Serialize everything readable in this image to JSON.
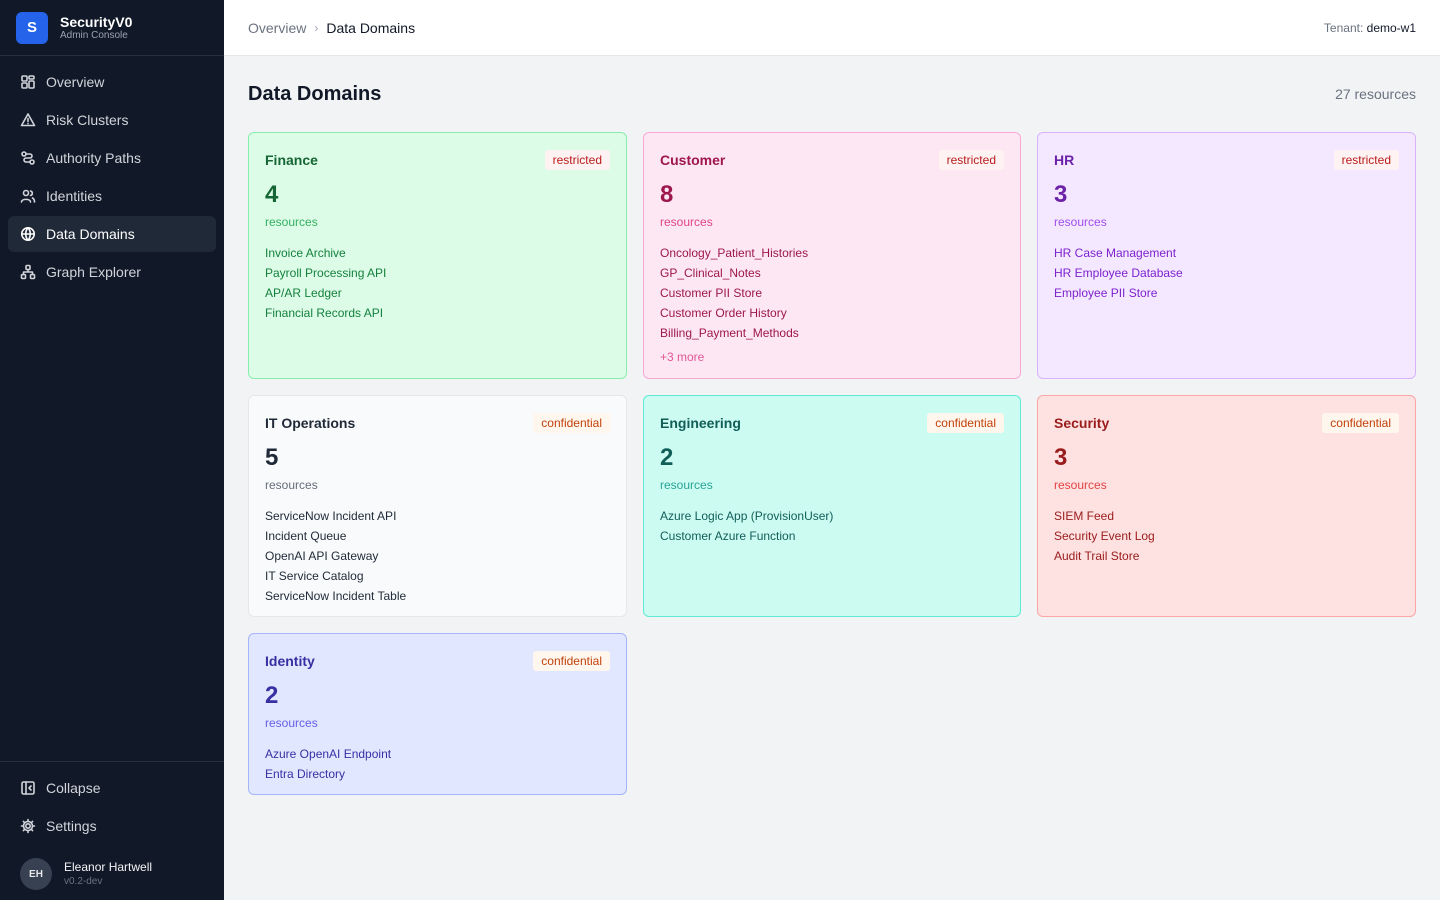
{
  "app": {
    "logo_letter": "S",
    "name": "SecurityV0",
    "subtitle": "Admin Console"
  },
  "nav": [
    {
      "label": "Overview",
      "icon": "grid-icon",
      "active": false
    },
    {
      "label": "Risk Clusters",
      "icon": "warning-triangle-icon",
      "active": false
    },
    {
      "label": "Authority Paths",
      "icon": "route-icon",
      "active": false
    },
    {
      "label": "Identities",
      "icon": "users-icon",
      "active": false
    },
    {
      "label": "Data Domains",
      "icon": "globe-icon",
      "active": true
    },
    {
      "label": "Graph Explorer",
      "icon": "graph-icon",
      "active": false
    }
  ],
  "sidebar_bottom": {
    "collapse_label": "Collapse",
    "settings_label": "Settings"
  },
  "user": {
    "initials": "EH",
    "name": "Eleanor Hartwell",
    "version": "v0.2-dev"
  },
  "header": {
    "crumb_root": "Overview",
    "crumb_sep": "›",
    "crumb_current": "Data Domains",
    "tenant_label": "Tenant:",
    "tenant_value": "demo-w1"
  },
  "page": {
    "title": "Data Domains",
    "resource_count": "27 resources"
  },
  "domains": [
    {
      "name": "Finance",
      "badge": "restricted",
      "count": "4",
      "count_label": "resources",
      "resources": [
        "Invoice Archive",
        "Payroll Processing API",
        "AP/AR Ledger",
        "Financial Records API"
      ],
      "more": "",
      "colors": {
        "bg": "#dcfce7",
        "border": "#86efac",
        "title": "#166534",
        "count": "#166534",
        "sub": "#16a34a",
        "item": "#15803d"
      }
    },
    {
      "name": "Customer",
      "badge": "restricted",
      "count": "8",
      "count_label": "resources",
      "resources": [
        "Oncology_Patient_Histories",
        "GP_Clinical_Notes",
        "Customer PII Store",
        "Customer Order History",
        "Billing_Payment_Methods"
      ],
      "more": "+3 more",
      "colors": {
        "bg": "#fce7f3",
        "border": "#f9a8d4",
        "title": "#9d174d",
        "count": "#9d174d",
        "sub": "#db2777",
        "item": "#9d174d"
      }
    },
    {
      "name": "HR",
      "badge": "restricted",
      "count": "3",
      "count_label": "resources",
      "resources": [
        "HR Case Management",
        "HR Employee Database",
        "Employee PII Store"
      ],
      "more": "",
      "colors": {
        "bg": "#f3e8ff",
        "border": "#d8b4fe",
        "title": "#6b21a8",
        "count": "#6b21a8",
        "sub": "#9333ea",
        "item": "#7e22ce"
      }
    },
    {
      "name": "IT Operations",
      "badge": "confidential",
      "count": "5",
      "count_label": "resources",
      "resources": [
        "ServiceNow Incident API",
        "Incident Queue",
        "OpenAI API Gateway",
        "IT Service Catalog",
        "ServiceNow Incident Table"
      ],
      "more": "",
      "colors": {
        "bg": "#f9fafb",
        "border": "#e5e7eb",
        "title": "#1f2937",
        "count": "#1f2937",
        "sub": "#4b5563",
        "item": "#1f2937"
      }
    },
    {
      "name": "Engineering",
      "badge": "confidential",
      "count": "2",
      "count_label": "resources",
      "resources": [
        "Azure Logic App (ProvisionUser)",
        "Customer Azure Function"
      ],
      "more": "",
      "colors": {
        "bg": "#ccfbf1",
        "border": "#5eead4",
        "title": "#115e59",
        "count": "#115e59",
        "sub": "#0d9488",
        "item": "#115e59"
      }
    },
    {
      "name": "Security",
      "badge": "confidential",
      "count": "3",
      "count_label": "resources",
      "resources": [
        "SIEM Feed",
        "Security Event Log",
        "Audit Trail Store"
      ],
      "more": "",
      "colors": {
        "bg": "#fee2e2",
        "border": "#fca5a5",
        "title": "#991b1b",
        "count": "#991b1b",
        "sub": "#dc2626",
        "item": "#991b1b"
      }
    },
    {
      "name": "Identity",
      "badge": "confidential",
      "count": "2",
      "count_label": "resources",
      "resources": [
        "Azure OpenAI Endpoint",
        "Entra Directory"
      ],
      "more": "",
      "colors": {
        "bg": "#e0e7ff",
        "border": "#a5b4fc",
        "title": "#3730a3",
        "count": "#3730a3",
        "sub": "#4f46e5",
        "item": "#3730a3"
      }
    }
  ]
}
